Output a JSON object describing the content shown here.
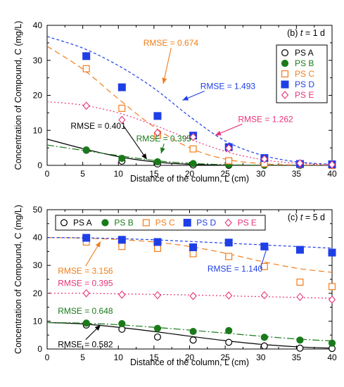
{
  "chart_data": [
    {
      "type": "scatter",
      "panel_label": "(b)",
      "time_label": {
        "var": "t",
        "value": " = 1 d"
      },
      "xlabel": "Distance of the column, L (cm)",
      "ylabel": "Concentration of Compound, C (mg/L)",
      "xlim": [
        0,
        40
      ],
      "ylim": [
        0,
        40
      ],
      "xticks": [
        0,
        5,
        10,
        15,
        20,
        25,
        30,
        35,
        40
      ],
      "yticks": [
        0,
        10,
        20,
        30,
        40
      ],
      "grid": false,
      "legend": {
        "placement": "right",
        "layout": "column"
      },
      "series": [
        {
          "name": "PS A",
          "color": "#000000",
          "marker": "circle-open",
          "points": [
            [
              5.5,
              4.3
            ],
            [
              10.5,
              1.2
            ],
            [
              15.5,
              0.4
            ],
            [
              20.5,
              0.1
            ],
            [
              25.5,
              0.0
            ],
            [
              30.5,
              0.0
            ],
            [
              35.5,
              0.0
            ],
            [
              40,
              0.0
            ]
          ],
          "fit": {
            "dash": "solid",
            "points": [
              [
                0,
                7.5
              ],
              [
                5,
                4.8
              ],
              [
                10,
                2.5
              ],
              [
                15,
                1.0
              ],
              [
                20,
                0.3
              ],
              [
                25,
                0.05
              ],
              [
                30,
                0.0
              ],
              [
                35,
                0.0
              ],
              [
                40,
                0.0
              ]
            ]
          }
        },
        {
          "name": "PS B",
          "color": "#1a7a1a",
          "marker": "circle-filled",
          "points": [
            [
              5.5,
              4.4
            ],
            [
              10.5,
              2.0
            ],
            [
              15.5,
              1.0
            ],
            [
              20.5,
              0.5
            ],
            [
              25.5,
              0.2
            ],
            [
              30.5,
              0.1
            ],
            [
              35.5,
              0.0
            ],
            [
              40,
              0.0
            ]
          ],
          "fit": {
            "dash": "10 3 2 3",
            "points": [
              [
                0,
                5.8
              ],
              [
                5,
                4.3
              ],
              [
                10,
                2.8
              ],
              [
                15,
                1.4
              ],
              [
                20,
                0.6
              ],
              [
                25,
                0.2
              ],
              [
                30,
                0.05
              ],
              [
                35,
                0.0
              ],
              [
                40,
                0.0
              ]
            ]
          }
        },
        {
          "name": "PS C",
          "color": "#f07d1a",
          "marker": "square-open",
          "points": [
            [
              5.5,
              27.6
            ],
            [
              10.5,
              16.3
            ],
            [
              15.5,
              8.6
            ],
            [
              20.5,
              4.7
            ],
            [
              25.5,
              1.3
            ],
            [
              30.5,
              0.5
            ],
            [
              35.5,
              0.2
            ],
            [
              40,
              0.0
            ]
          ],
          "fit": {
            "dash": "8 5",
            "points": [
              [
                0,
                34.0
              ],
              [
                5,
                27.5
              ],
              [
                10,
                19.0
              ],
              [
                15,
                11.0
              ],
              [
                20,
                5.0
              ],
              [
                25,
                1.8
              ],
              [
                30,
                0.5
              ],
              [
                35,
                0.1
              ],
              [
                40,
                0.0
              ]
            ]
          }
        },
        {
          "name": "PS D",
          "color": "#1f3fe6",
          "marker": "square-filled",
          "points": [
            [
              5.5,
              31.2
            ],
            [
              10.5,
              22.3
            ],
            [
              15.5,
              14.1
            ],
            [
              20.5,
              8.5
            ],
            [
              25.5,
              5.2
            ],
            [
              30.5,
              2.1
            ],
            [
              35.5,
              0.4
            ],
            [
              40,
              0.3
            ]
          ],
          "fit": {
            "dash": "4 3",
            "points": [
              [
                0,
                36.8
              ],
              [
                5,
                33.5
              ],
              [
                10,
                28.5
              ],
              [
                15,
                22.0
              ],
              [
                20,
                14.0
              ],
              [
                25,
                7.0
              ],
              [
                30,
                3.0
              ],
              [
                35,
                1.0
              ],
              [
                40,
                0.3
              ]
            ]
          }
        },
        {
          "name": "PS E",
          "color": "#e8337a",
          "marker": "diamond-open",
          "points": [
            [
              5.5,
              17.0
            ],
            [
              10.5,
              13.0
            ],
            [
              15.5,
              9.3
            ],
            [
              20.5,
              8.1
            ],
            [
              25.5,
              4.9
            ],
            [
              30.5,
              1.8
            ],
            [
              35.5,
              0.6
            ],
            [
              40,
              0.2
            ]
          ],
          "fit": {
            "dash": "2 3",
            "points": [
              [
                0,
                18.2
              ],
              [
                5,
                17.2
              ],
              [
                10,
                15.0
              ],
              [
                15,
                11.5
              ],
              [
                20,
                7.5
              ],
              [
                25,
                4.0
              ],
              [
                30,
                1.7
              ],
              [
                35,
                0.6
              ],
              [
                40,
                0.2
              ]
            ]
          }
        }
      ],
      "annotations": [
        {
          "text": "RMSE = 0.674",
          "color": "#f07d1a",
          "ax": 13.5,
          "ay": 34.2,
          "tip": [
            16.3,
            23.3
          ]
        },
        {
          "text": "RMSE = 1.493",
          "color": "#1f3fe6",
          "ax": 21.5,
          "ay": 21.8,
          "tip": [
            19.0,
            18.6
          ]
        },
        {
          "text": "RMSE = 1.262",
          "color": "#e8337a",
          "ax": 26.8,
          "ay": 12.4,
          "tip": [
            23.6,
            8.6
          ]
        },
        {
          "text": "RMSE = 0.401",
          "color": "#000000",
          "ax": 3.3,
          "ay": 10.5,
          "tip": [
            14.0,
            1.7
          ]
        },
        {
          "text": "RMSE = 0.395",
          "color": "#1a7a1a",
          "ax": 12.5,
          "ay": 6.8,
          "tip": [
            16.0,
            3.4
          ]
        }
      ]
    },
    {
      "type": "scatter",
      "panel_label": "(c)",
      "time_label": {
        "var": "t",
        "value": " = 5 d"
      },
      "xlabel": "Distance of the column, L (cm)",
      "ylabel": "Concentration of Compound, C (mg/L)",
      "xlim": [
        0,
        40
      ],
      "ylim": [
        0,
        50
      ],
      "xticks": [
        0,
        5,
        10,
        15,
        20,
        25,
        30,
        35,
        40
      ],
      "yticks": [
        0,
        10,
        20,
        30,
        40,
        50
      ],
      "grid": false,
      "legend": {
        "placement": "top",
        "layout": "row"
      },
      "series": [
        {
          "name": "PS A",
          "color": "#000000",
          "marker": "circle-open",
          "points": [
            [
              5.5,
              8.6
            ],
            [
              10.5,
              7.1
            ],
            [
              15.5,
              4.3
            ],
            [
              20.5,
              3.2
            ],
            [
              25.5,
              2.4
            ],
            [
              30.5,
              1.1
            ],
            [
              35.5,
              0.3
            ],
            [
              40,
              0.2
            ]
          ],
          "fit": {
            "dash": "solid",
            "points": [
              [
                0,
                9.5
              ],
              [
                5,
                9.0
              ],
              [
                10,
                7.8
              ],
              [
                15,
                6.3
              ],
              [
                20,
                4.6
              ],
              [
                25,
                3.0
              ],
              [
                30,
                1.7
              ],
              [
                35,
                0.8
              ],
              [
                40,
                0.3
              ]
            ]
          }
        },
        {
          "name": "PS B",
          "color": "#1a7a1a",
          "marker": "circle-filled",
          "points": [
            [
              5.5,
              9.3
            ],
            [
              10.5,
              9.1
            ],
            [
              15.5,
              7.4
            ],
            [
              20.5,
              6.3
            ],
            [
              25.5,
              6.6
            ],
            [
              30.5,
              4.2
            ],
            [
              35.5,
              3.2
            ],
            [
              40,
              2.1
            ]
          ],
          "fit": {
            "dash": "10 3 2 3",
            "points": [
              [
                0,
                9.5
              ],
              [
                5,
                9.3
              ],
              [
                10,
                8.7
              ],
              [
                15,
                7.8
              ],
              [
                20,
                6.8
              ],
              [
                25,
                5.7
              ],
              [
                30,
                4.6
              ],
              [
                35,
                3.6
              ],
              [
                40,
                2.9
              ]
            ]
          }
        },
        {
          "name": "PS C",
          "color": "#f07d1a",
          "marker": "square-open",
          "points": [
            [
              5.5,
              38.4
            ],
            [
              10.5,
              36.8
            ],
            [
              15.5,
              36.1
            ],
            [
              20.5,
              34.2
            ],
            [
              25.5,
              33.2
            ],
            [
              30.5,
              29.6
            ],
            [
              35.5,
              24.0
            ],
            [
              40,
              22.4
            ]
          ],
          "fit": {
            "dash": "8 5",
            "points": [
              [
                0,
                40.0
              ],
              [
                5,
                39.8
              ],
              [
                10,
                39.3
              ],
              [
                15,
                38.4
              ],
              [
                20,
                36.8
              ],
              [
                25,
                34.4
              ],
              [
                30,
                31.5
              ],
              [
                35,
                29.0
              ],
              [
                40,
                27.5
              ]
            ]
          }
        },
        {
          "name": "PS D",
          "color": "#1f3fe6",
          "marker": "square-filled",
          "points": [
            [
              5.5,
              39.9
            ],
            [
              10.5,
              39.2
            ],
            [
              15.5,
              38.4
            ],
            [
              20.5,
              36.5
            ],
            [
              25.5,
              38.2
            ],
            [
              30.5,
              36.8
            ],
            [
              35.5,
              35.6
            ],
            [
              40,
              34.6
            ]
          ],
          "fit": {
            "dash": "4 3",
            "points": [
              [
                0,
                40.0
              ],
              [
                5,
                39.9
              ],
              [
                10,
                39.6
              ],
              [
                15,
                39.2
              ],
              [
                20,
                38.6
              ],
              [
                25,
                38.0
              ],
              [
                30,
                37.4
              ],
              [
                35,
                36.8
              ],
              [
                40,
                36.2
              ]
            ]
          }
        },
        {
          "name": "PS E",
          "color": "#e8337a",
          "marker": "diamond-open",
          "points": [
            [
              5.5,
              20.0
            ],
            [
              10.5,
              19.5
            ],
            [
              15.5,
              19.3
            ],
            [
              20.5,
              19.0
            ],
            [
              25.5,
              19.2
            ],
            [
              30.5,
              19.3
            ],
            [
              35.5,
              18.7
            ],
            [
              40,
              17.7
            ]
          ],
          "fit": {
            "dash": "2 3",
            "points": [
              [
                0,
                20.0
              ],
              [
                5,
                20.0
              ],
              [
                10,
                19.8
              ],
              [
                15,
                19.6
              ],
              [
                20,
                19.4
              ],
              [
                25,
                19.1
              ],
              [
                30,
                18.8
              ],
              [
                35,
                18.5
              ],
              [
                40,
                18.2
              ]
            ]
          }
        }
      ],
      "annotations": [
        {
          "text": "RMSE = 3.156",
          "color": "#f07d1a",
          "ax": 1.5,
          "ay": 27.0,
          "tip": [
            7.5,
            38.6
          ]
        },
        {
          "text": "RMSE = 0.395",
          "color": "#e8337a",
          "ax": 1.5,
          "ay": 22.6
        },
        {
          "text": "RMSE = 1.140",
          "color": "#1f3fe6",
          "ax": 22.5,
          "ay": 27.8,
          "tip": [
            31.0,
            37.5
          ]
        },
        {
          "text": "RMSE = 0.648",
          "color": "#1a7a1a",
          "ax": 1.5,
          "ay": 12.6
        },
        {
          "text": "RMSE = 0.582",
          "color": "#000000",
          "ax": 1.5,
          "ay": 0.6,
          "tip": [
            7.5,
            8.6
          ]
        }
      ]
    }
  ]
}
